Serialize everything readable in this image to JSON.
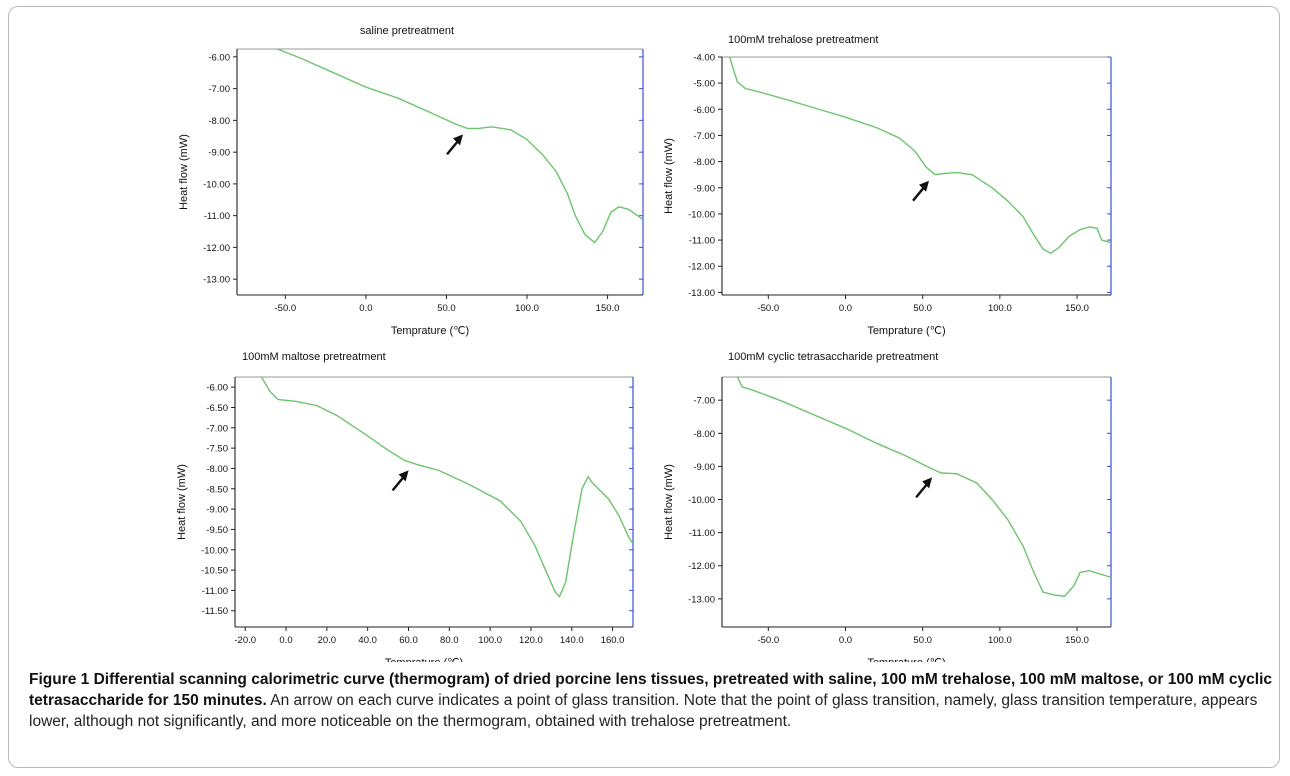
{
  "chart_data": [
    {
      "type": "line",
      "title": "saline pretreatment",
      "xlabel": "Temprature (℃)",
      "ylabel": "Heat flow (mW)",
      "xlim": [
        -80,
        172
      ],
      "ylim": [
        -13.5,
        -5.75
      ],
      "xticks": [
        -50,
        0,
        50,
        100,
        150
      ],
      "xtick_labels": [
        "-50.0",
        "0.0",
        "50.0",
        "100.0",
        "150.0"
      ],
      "yticks": [
        -6,
        -7,
        -8,
        -9,
        -10,
        -11,
        -12,
        -13
      ],
      "ytick_labels": [
        "-6.00",
        "-7.00",
        "-8.00",
        "-9.00",
        "-10.00",
        "-11.00",
        "-12.00",
        "-13.00"
      ],
      "arrow_at": [
        64,
        -8.25
      ],
      "series": [
        {
          "color": "#6cc46c",
          "points": [
            [
              -55,
              -5.75
            ],
            [
              -40,
              -6.05
            ],
            [
              -20,
              -6.5
            ],
            [
              0,
              -6.95
            ],
            [
              20,
              -7.3
            ],
            [
              40,
              -7.75
            ],
            [
              55,
              -8.1
            ],
            [
              63,
              -8.25
            ],
            [
              70,
              -8.25
            ],
            [
              78,
              -8.2
            ],
            [
              90,
              -8.3
            ],
            [
              100,
              -8.6
            ],
            [
              110,
              -9.1
            ],
            [
              118,
              -9.6
            ],
            [
              125,
              -10.3
            ],
            [
              130,
              -11.0
            ],
            [
              136,
              -11.6
            ],
            [
              142,
              -11.85
            ],
            [
              147,
              -11.5
            ],
            [
              152,
              -10.9
            ],
            [
              157,
              -10.72
            ],
            [
              163,
              -10.8
            ],
            [
              172,
              -11.12
            ]
          ]
        }
      ]
    },
    {
      "type": "line",
      "title": "100mM trehalose pretreatment",
      "xlabel": "Temprature (℃)",
      "ylabel": "Heat flow (mW)",
      "xlim": [
        -80,
        172
      ],
      "ylim": [
        -13.1,
        -4.0
      ],
      "xticks": [
        -50,
        0,
        50,
        100,
        150
      ],
      "xtick_labels": [
        "-50.0",
        "0.0",
        "50.0",
        "100.0",
        "150.0"
      ],
      "yticks": [
        -4,
        -5,
        -6,
        -7,
        -8,
        -9,
        -10,
        -11,
        -12,
        -13
      ],
      "ytick_labels": [
        "-4.00",
        "-5.00",
        "-6.00",
        "-7.00",
        "-8.00",
        "-9.00",
        "-10.00",
        "-11.00",
        "-12.00",
        "-13.00"
      ],
      "arrow_at": [
        58,
        -8.5
      ],
      "series": [
        {
          "color": "#6cc46c",
          "points": [
            [
              -75,
              -4.0
            ],
            [
              -73,
              -4.4
            ],
            [
              -70,
              -4.95
            ],
            [
              -65,
              -5.2
            ],
            [
              -55,
              -5.35
            ],
            [
              -40,
              -5.6
            ],
            [
              -20,
              -5.95
            ],
            [
              0,
              -6.3
            ],
            [
              20,
              -6.7
            ],
            [
              35,
              -7.1
            ],
            [
              45,
              -7.6
            ],
            [
              52,
              -8.2
            ],
            [
              58,
              -8.5
            ],
            [
              64,
              -8.45
            ],
            [
              72,
              -8.42
            ],
            [
              82,
              -8.5
            ],
            [
              95,
              -9.0
            ],
            [
              105,
              -9.5
            ],
            [
              115,
              -10.1
            ],
            [
              122,
              -10.8
            ],
            [
              128,
              -11.35
            ],
            [
              133,
              -11.5
            ],
            [
              138,
              -11.3
            ],
            [
              145,
              -10.85
            ],
            [
              152,
              -10.6
            ],
            [
              158,
              -10.5
            ],
            [
              163,
              -10.55
            ],
            [
              166,
              -11.0
            ],
            [
              172,
              -11.1
            ]
          ]
        }
      ]
    },
    {
      "type": "line",
      "title": "100mM maltose pretreatment",
      "xlabel": "Temprature (℃)",
      "ylabel": "Heat flow (mW)",
      "xlim": [
        -25,
        170
      ],
      "ylim": [
        -11.9,
        -5.75
      ],
      "xticks": [
        -20,
        0,
        20,
        40,
        60,
        80,
        100,
        120,
        140,
        160
      ],
      "xtick_labels": [
        "-20.0",
        "0.0",
        "20.0",
        "40.0",
        "60.0",
        "80.0",
        "100.0",
        "120.0",
        "140.0",
        "160.0"
      ],
      "yticks": [
        -6,
        -6.5,
        -7,
        -7.5,
        -8,
        -8.5,
        -9,
        -9.5,
        -10,
        -10.5,
        -11,
        -11.5
      ],
      "ytick_labels": [
        "-6.00",
        "-6.50",
        "-7.00",
        "-7.50",
        "-8.00",
        "-8.50",
        "-9.00",
        "-9.50",
        "-10.00",
        "-10.50",
        "-11.00",
        "-11.50"
      ],
      "arrow_at": [
        63,
        -7.9
      ],
      "series": [
        {
          "color": "#6cc46c",
          "points": [
            [
              -12,
              -5.75
            ],
            [
              -8,
              -6.1
            ],
            [
              -4,
              -6.3
            ],
            [
              5,
              -6.35
            ],
            [
              15,
              -6.45
            ],
            [
              25,
              -6.7
            ],
            [
              40,
              -7.2
            ],
            [
              50,
              -7.55
            ],
            [
              58,
              -7.8
            ],
            [
              64,
              -7.9
            ],
            [
              75,
              -8.05
            ],
            [
              90,
              -8.4
            ],
            [
              105,
              -8.8
            ],
            [
              115,
              -9.3
            ],
            [
              122,
              -9.9
            ],
            [
              128,
              -10.6
            ],
            [
              132,
              -11.05
            ],
            [
              134,
              -11.15
            ],
            [
              137,
              -10.8
            ],
            [
              141,
              -9.6
            ],
            [
              145,
              -8.5
            ],
            [
              148,
              -8.2
            ],
            [
              150,
              -8.35
            ],
            [
              153,
              -8.5
            ],
            [
              158,
              -8.75
            ],
            [
              163,
              -9.15
            ],
            [
              168,
              -9.7
            ],
            [
              170,
              -9.85
            ]
          ]
        }
      ]
    },
    {
      "type": "line",
      "title": "100mM cyclic tetrasaccharide pretreatment",
      "xlabel": "Temprature (℃)",
      "ylabel": "Heat flow (mW)",
      "xlim": [
        -80,
        172
      ],
      "ylim": [
        -13.85,
        -6.3
      ],
      "xticks": [
        -50,
        0,
        50,
        100,
        150
      ],
      "xtick_labels": [
        "-50.0",
        "0.0",
        "50.0",
        "100.0",
        "150.0"
      ],
      "yticks": [
        -7,
        -8,
        -9,
        -10,
        -11,
        -12,
        -13
      ],
      "ytick_labels": [
        "-7.00",
        "-8.00",
        "-9.00",
        "-10.00",
        "-11.00",
        "-12.00",
        "-13.00"
      ],
      "arrow_at": [
        60,
        -9.15
      ],
      "series": [
        {
          "color": "#6cc46c",
          "points": [
            [
              -70,
              -6.3
            ],
            [
              -67,
              -6.6
            ],
            [
              -60,
              -6.7
            ],
            [
              -40,
              -7.05
            ],
            [
              -20,
              -7.45
            ],
            [
              0,
              -7.85
            ],
            [
              20,
              -8.3
            ],
            [
              40,
              -8.7
            ],
            [
              55,
              -9.05
            ],
            [
              62,
              -9.2
            ],
            [
              72,
              -9.22
            ],
            [
              85,
              -9.5
            ],
            [
              95,
              -10.0
            ],
            [
              105,
              -10.6
            ],
            [
              115,
              -11.4
            ],
            [
              122,
              -12.2
            ],
            [
              128,
              -12.8
            ],
            [
              135,
              -12.88
            ],
            [
              142,
              -12.92
            ],
            [
              148,
              -12.6
            ],
            [
              152,
              -12.2
            ],
            [
              158,
              -12.15
            ],
            [
              165,
              -12.25
            ],
            [
              172,
              -12.35
            ]
          ]
        }
      ]
    }
  ],
  "caption": {
    "bold": "Figure 1 Differential scanning calorimetric curve (thermogram) of dried porcine lens tissues, pretreated with saline, 100 mM trehalose, 100 mM maltose, or 100 mM cyclic tetrasaccharide for 150 minutes.",
    "text": "An arrow on each curve indicates a point of glass transition. Note that the point of glass transition, namely, glass transition temperature, appears lower, although not significantly, and more noticeable on the thermogram, obtained with trehalose pretreatment."
  }
}
